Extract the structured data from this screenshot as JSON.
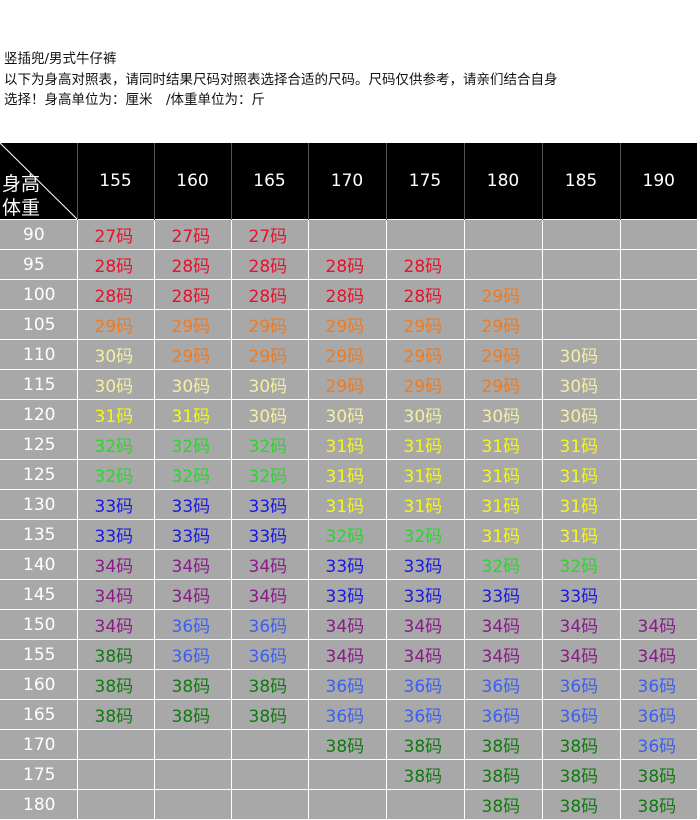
{
  "header": {
    "title": "竖插兜/男式牛仔裤",
    "line1": "以下为身高对照表，请同时结果尺码对照表选择合适的尺码。尺码仅供参考，请亲们结合自身",
    "line2": "选择！身高单位为：厘米　/体重单位为：斤"
  },
  "table": {
    "corner_height": "身高",
    "corner_weight": "体重",
    "heights": [
      "155",
      "160",
      "165",
      "170",
      "175",
      "180",
      "185",
      "190"
    ],
    "rows": [
      {
        "w": "90",
        "c": [
          "27码",
          "27码",
          "27码",
          "",
          "",
          "",
          "",
          ""
        ]
      },
      {
        "w": "95",
        "c": [
          "28码",
          "28码",
          "28码",
          "28码",
          "28码",
          "",
          "",
          ""
        ]
      },
      {
        "w": "100",
        "c": [
          "28码",
          "28码",
          "28码",
          "28码",
          "28码",
          "29码",
          "",
          ""
        ]
      },
      {
        "w": "105",
        "c": [
          "29码",
          "29码",
          "29码",
          "29码",
          "29码",
          "29码",
          "",
          ""
        ]
      },
      {
        "w": "110",
        "c": [
          "30码",
          "29码",
          "29码",
          "29码",
          "29码",
          "29码",
          "30码",
          ""
        ]
      },
      {
        "w": "115",
        "c": [
          "30码",
          "30码",
          "30码",
          "29码",
          "29码",
          "29码",
          "30码",
          ""
        ]
      },
      {
        "w": "120",
        "c": [
          "31码",
          "31码",
          "30码",
          "30码",
          "30码",
          "30码",
          "30码",
          ""
        ]
      },
      {
        "w": "125",
        "c": [
          "32码",
          "32码",
          "32码",
          "31码",
          "31码",
          "31码",
          "31码",
          ""
        ]
      },
      {
        "w": "125",
        "c": [
          "32码",
          "32码",
          "32码",
          "31码",
          "31码",
          "31码",
          "31码",
          ""
        ]
      },
      {
        "w": "130",
        "c": [
          "33码",
          "33码",
          "33码",
          "31码",
          "31码",
          "31码",
          "31码",
          ""
        ]
      },
      {
        "w": "135",
        "c": [
          "33码",
          "33码",
          "33码",
          "32码",
          "32码",
          "31码",
          "31码",
          ""
        ]
      },
      {
        "w": "140",
        "c": [
          "34码",
          "34码",
          "34码",
          "33码",
          "33码",
          "32码",
          "32码",
          ""
        ]
      },
      {
        "w": "145",
        "c": [
          "34码",
          "34码",
          "34码",
          "33码",
          "33码",
          "33码",
          "33码",
          ""
        ]
      },
      {
        "w": "150",
        "c": [
          "34码",
          "36码",
          "36码",
          "34码",
          "34码",
          "34码",
          "34码",
          "34码"
        ]
      },
      {
        "w": "155",
        "c": [
          "38码",
          "36码",
          "36码",
          "34码",
          "34码",
          "34码",
          "34码",
          "34码"
        ]
      },
      {
        "w": "160",
        "c": [
          "38码",
          "38码",
          "38码",
          "36码",
          "36码",
          "36码",
          "36码",
          "36码"
        ]
      },
      {
        "w": "165",
        "c": [
          "38码",
          "38码",
          "38码",
          "36码",
          "36码",
          "36码",
          "36码",
          "36码"
        ]
      },
      {
        "w": "170",
        "c": [
          "",
          "",
          "",
          "38码",
          "38码",
          "38码",
          "38码",
          "36码"
        ]
      },
      {
        "w": "175",
        "c": [
          "",
          "",
          "",
          "",
          "38码",
          "38码",
          "38码",
          "38码"
        ]
      },
      {
        "w": "180",
        "c": [
          "",
          "",
          "",
          "",
          "",
          "38码",
          "38码",
          "38码"
        ]
      }
    ]
  },
  "size_colors": {
    "27码": "#e8102a",
    "28码": "#e8102a",
    "29码": "#f07a1e",
    "30码": "#f5f0a0",
    "31码": "#f7f714",
    "32码": "#2ad62a",
    "33码": "#1818e6",
    "34码": "#8a1a8a",
    "36码": "#3b5ff0",
    "38码": "#0e7a0e"
  },
  "colors": {
    "header_bg": "#000000",
    "cell_bg": "#a8a8a8",
    "grid": "#ffffff"
  }
}
